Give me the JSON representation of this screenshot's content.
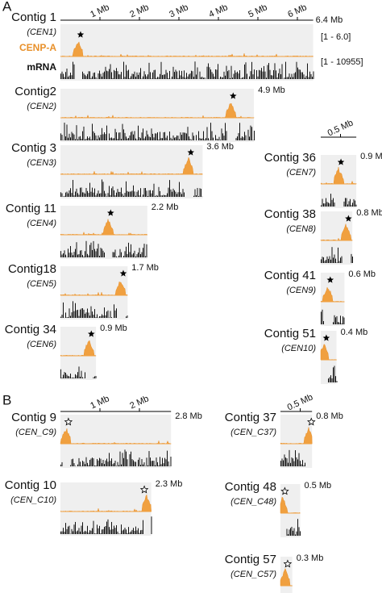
{
  "panels": [
    {
      "label": "A",
      "ruler": [
        "1 Mb",
        "2 Mb",
        "3 Mb",
        "4 Mb",
        "5 Mb",
        "6 Mb"
      ],
      "track_labels": [
        "CENP-A",
        "mRNA"
      ],
      "track_ranges": [
        "[1 - 6.0]",
        "[1 - 10955]"
      ],
      "contigs": [
        {
          "name": "Contig 1",
          "cen": "CEN1",
          "size": "6.4 Mb"
        },
        {
          "name": "Contig2",
          "cen": "CEN2",
          "size": "4.9 Mb"
        },
        {
          "name": "Contig 3",
          "cen": "CEN3",
          "size": "3.6 Mb"
        },
        {
          "name": "Contig 11",
          "cen": "CEN4",
          "size": "2.2 Mb"
        },
        {
          "name": "Contig18",
          "cen": "CEN5",
          "size": "1.7 Mb"
        },
        {
          "name": "Contig 34",
          "cen": "CEN6",
          "size": "0.9 Mb"
        }
      ],
      "right_ruler": [
        "0.5 Mb"
      ],
      "right_contigs": [
        {
          "name": "Contig 36",
          "cen": "CEN7",
          "size": "0.9 Mb"
        },
        {
          "name": "Contig 38",
          "cen": "CEN8",
          "size": "0.8 Mb"
        },
        {
          "name": "Contig 41",
          "cen": "CEN9",
          "size": "0.6 Mb"
        },
        {
          "name": "Contig 51",
          "cen": "CEN10",
          "size": "0.4 Mb"
        }
      ]
    },
    {
      "label": "B",
      "ruler": [
        "1 Mb",
        "2 Mb"
      ],
      "contigs": [
        {
          "name": "Contig 9",
          "cen": "CEN_C9",
          "size": "2.8 Mb"
        },
        {
          "name": "Contig 10",
          "cen": "CEN_C10",
          "size": "2.3 Mb"
        }
      ],
      "right_ruler": [
        "0.5 Mb"
      ],
      "right_contigs": [
        {
          "name": "Contig 37",
          "cen": "CEN_C37",
          "size": "0.8 Mb"
        },
        {
          "name": "Contig 48",
          "cen": "CEN_C48",
          "size": "0.5 Mb"
        },
        {
          "name": "Contig 57",
          "cen": "CEN_C57",
          "size": "0.3 Mb"
        }
      ]
    }
  ]
}
